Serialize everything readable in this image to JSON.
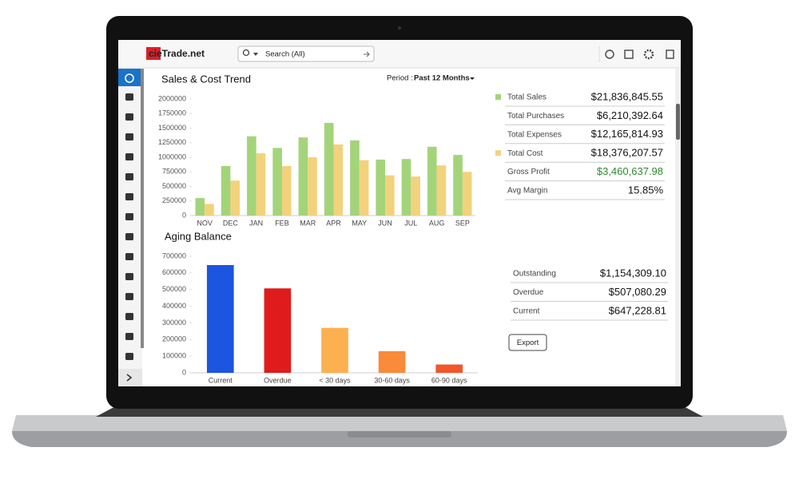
{
  "header": {
    "logo": "cieTrade.net",
    "search_placeholder": "Search (All)"
  },
  "period": {
    "label": "Period :",
    "value": "Past 12 Months"
  },
  "chart_data": [
    {
      "type": "grouped_bar",
      "title": "Sales & Cost Trend",
      "categories": [
        "NOV",
        "DEC",
        "JAN",
        "FEB",
        "MAR",
        "APR",
        "MAY",
        "JUN",
        "JUL",
        "AUG",
        "SEP"
      ],
      "series": [
        {
          "color": "#a3d47a",
          "values": [
            300000,
            850000,
            1360000,
            1160000,
            1340000,
            1590000,
            1290000,
            960000,
            970000,
            1180000,
            1040000
          ]
        },
        {
          "color": "#f3d27d",
          "values": [
            200000,
            600000,
            1070000,
            850000,
            1000000,
            1220000,
            950000,
            690000,
            670000,
            860000,
            750000
          ]
        }
      ],
      "ylim": [
        0,
        2000000
      ],
      "yticks": [
        0,
        250000,
        500000,
        750000,
        1000000,
        1250000,
        1500000,
        1750000,
        2000000
      ],
      "grid": false
    },
    {
      "type": "bar",
      "title": "Aging Balance",
      "categories": [
        "Current",
        "Overdue",
        "< 30 days",
        "30-60 days",
        "60-90 days"
      ],
      "values": [
        647228.81,
        507080.29,
        270000,
        130000,
        50000
      ],
      "colors": [
        "#1c55e0",
        "#e01b1b",
        "#fdb04f",
        "#f98b3a",
        "#f2562a"
      ],
      "ylim": [
        0,
        700000
      ],
      "yticks": [
        0,
        100000,
        200000,
        300000,
        400000,
        500000,
        600000,
        700000
      ],
      "grid": false
    }
  ],
  "summary": [
    {
      "label": "Total Sales",
      "value": "$21,836,845.55",
      "color": "#a3d47a"
    },
    {
      "label": "Total Purchases",
      "value": "$6,210,392.64"
    },
    {
      "label": "Total Expenses",
      "value": "$12,165,814.93"
    },
    {
      "label": "Total Cost",
      "value": "$18,376,207.57",
      "color": "#f3d27d"
    },
    {
      "label": "Gross Profit",
      "value": "$3,460,637.98",
      "value_color": "#2e8b2e"
    },
    {
      "label": "Avg Margin",
      "value": "15.85%"
    }
  ],
  "aging_summary": [
    {
      "label": "Outstanding",
      "value": "$1,154,309.10"
    },
    {
      "label": "Overdue",
      "value": "$507,080.29"
    },
    {
      "label": "Current",
      "value": "$647,228.81"
    }
  ],
  "export_button": "Export"
}
